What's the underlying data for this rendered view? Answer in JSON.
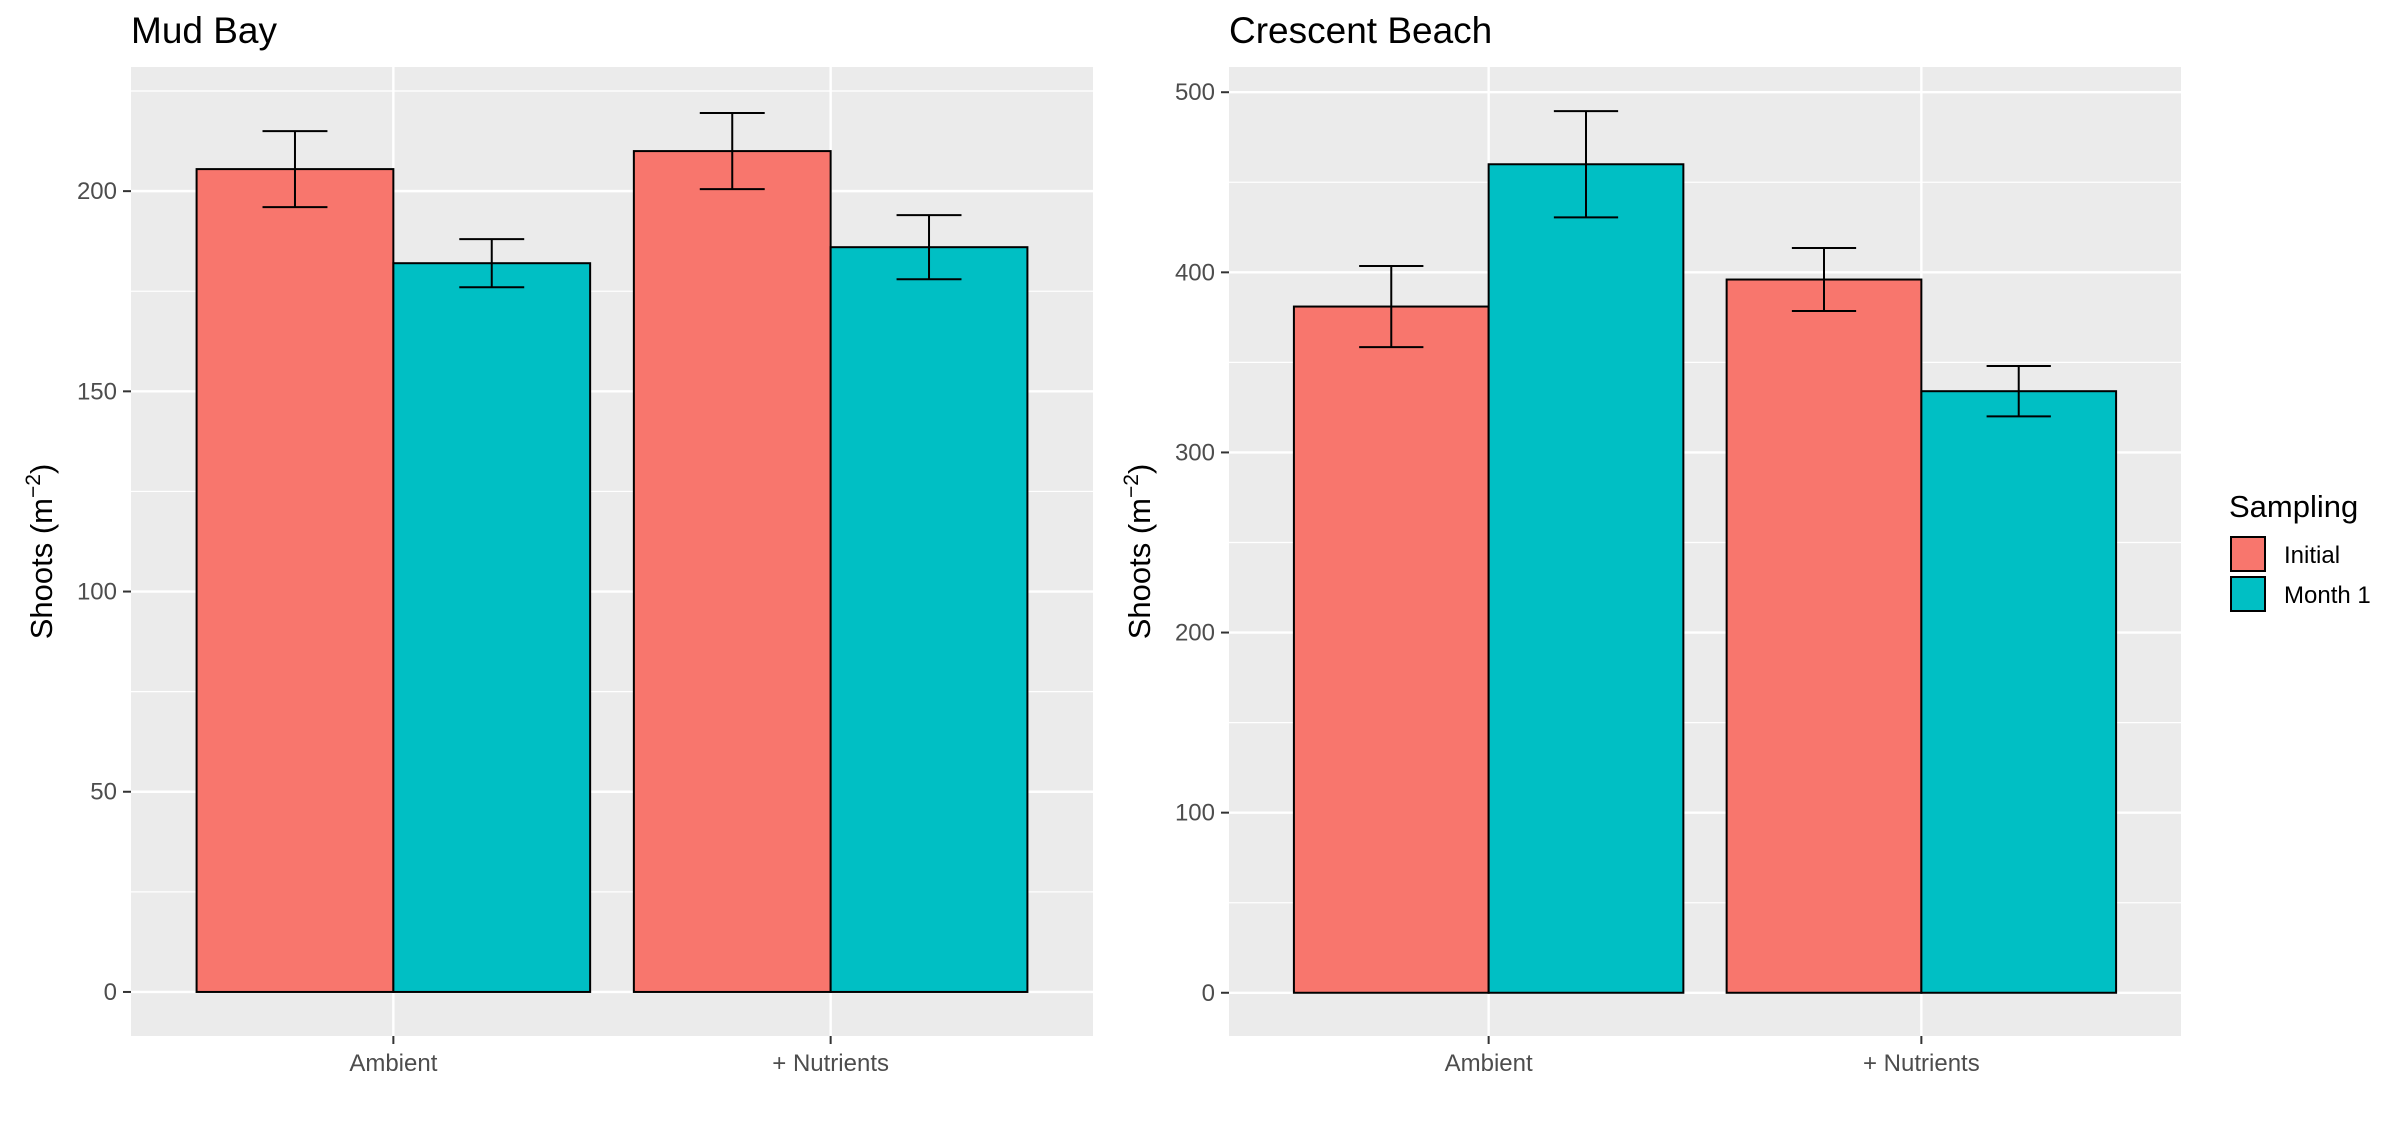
{
  "chart_data": [
    {
      "type": "bar",
      "title": "Mud Bay",
      "xlabel": "",
      "ylabel": "Shoots (m",
      "ylabel_sup": "−2",
      "ylabel_end": ")",
      "categories": [
        "Ambient",
        "+ Nutrients"
      ],
      "ylim": [
        -11,
        231
      ],
      "yticks": [
        0,
        50,
        100,
        150,
        200
      ],
      "series": [
        {
          "name": "Initial",
          "values": [
            205.5,
            210
          ],
          "errors": [
            9.5,
            9.5
          ]
        },
        {
          "name": "Month 1",
          "values": [
            182,
            186
          ],
          "errors": [
            6,
            8
          ]
        }
      ],
      "grid": true
    },
    {
      "type": "bar",
      "title": "Crescent Beach",
      "xlabel": "",
      "ylabel": "Shoots (m",
      "ylabel_sup": "−2",
      "ylabel_end": ")",
      "categories": [
        "Ambient",
        "+ Nutrients"
      ],
      "ylim": [
        -24,
        514
      ],
      "yticks": [
        0,
        100,
        200,
        300,
        400,
        500
      ],
      "series": [
        {
          "name": "Initial",
          "values": [
            381,
            396
          ],
          "errors": [
            22.5,
            17.5
          ]
        },
        {
          "name": "Month 1",
          "values": [
            460,
            334
          ],
          "errors": [
            29.5,
            14
          ]
        }
      ],
      "grid": true
    }
  ],
  "legend": {
    "title": "Sampling",
    "position": "right",
    "entries": [
      {
        "label": "Initial",
        "color": "#F8766D"
      },
      {
        "label": "Month 1",
        "color": "#00BFC4"
      }
    ]
  },
  "colors": {
    "panel_bg": "#EBEBEB",
    "grid": "#FFFFFF",
    "bar_outline": "#000000"
  }
}
